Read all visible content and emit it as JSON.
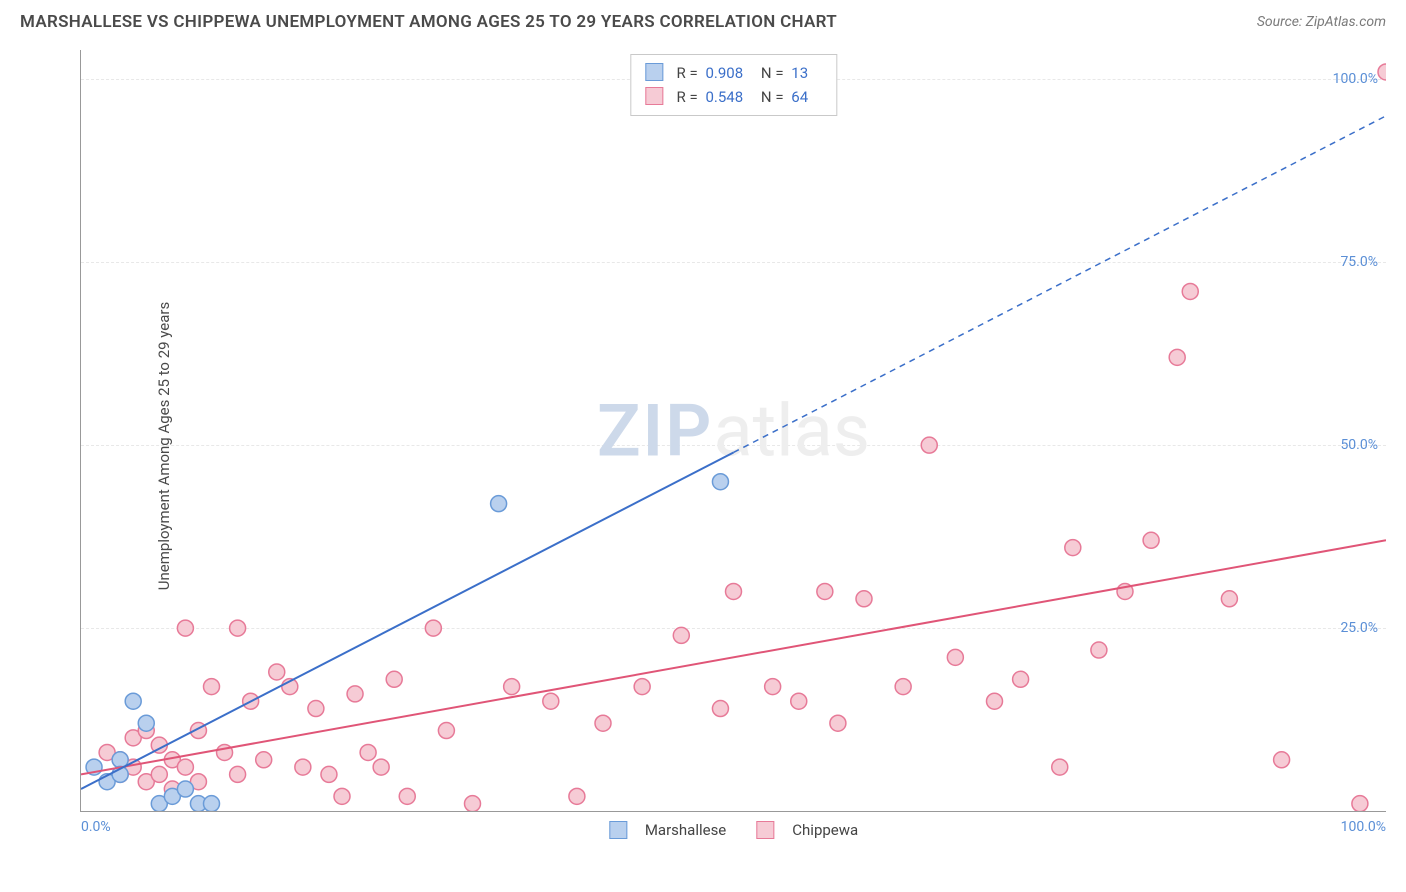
{
  "header": {
    "title": "MARSHALLESE VS CHIPPEWA UNEMPLOYMENT AMONG AGES 25 TO 29 YEARS CORRELATION CHART",
    "source": "Source: ZipAtlas.com"
  },
  "ylabel": "Unemployment Among Ages 25 to 29 years",
  "watermark": {
    "zip": "ZIP",
    "atlas": "atlas"
  },
  "chart": {
    "type": "scatter",
    "xlim": [
      0,
      100
    ],
    "ylim": [
      0,
      104
    ],
    "xticks": [
      {
        "v": 0,
        "label": "0.0%"
      },
      {
        "v": 100,
        "label": "100.0%"
      }
    ],
    "yticks": [
      {
        "v": 25,
        "label": "25.0%"
      },
      {
        "v": 50,
        "label": "50.0%"
      },
      {
        "v": 75,
        "label": "75.0%"
      },
      {
        "v": 100,
        "label": "100.0%"
      }
    ],
    "grid_color": "#e8e8e8",
    "axis_color": "#999999",
    "tick_color": "#5b8fd6",
    "marker_radius": 8,
    "marker_stroke_width": 1.5,
    "line_width": 2
  },
  "series": {
    "marshallese": {
      "label": "Marshallese",
      "color_fill": "#b9d0ee",
      "color_stroke": "#6a9bd8",
      "line_color": "#3b6fc9",
      "R": "0.908",
      "N": "13",
      "trend": {
        "solid_to": 50,
        "x1": 0,
        "y1": 3,
        "x2": 100,
        "y2": 95
      },
      "points": [
        [
          1,
          6
        ],
        [
          2,
          4
        ],
        [
          3,
          7
        ],
        [
          3,
          5
        ],
        [
          4,
          15
        ],
        [
          5,
          12
        ],
        [
          6,
          1
        ],
        [
          7,
          2
        ],
        [
          8,
          3
        ],
        [
          9,
          1
        ],
        [
          10,
          1
        ],
        [
          32,
          42
        ],
        [
          49,
          45
        ]
      ]
    },
    "chippewa": {
      "label": "Chippewa",
      "color_fill": "#f6cbd5",
      "color_stroke": "#e77a98",
      "line_color": "#e05577",
      "R": "0.548",
      "N": "64",
      "trend": {
        "x1": 0,
        "y1": 5,
        "x2": 100,
        "y2": 37
      },
      "points": [
        [
          2,
          8
        ],
        [
          3,
          7
        ],
        [
          3,
          5
        ],
        [
          4,
          10
        ],
        [
          4,
          6
        ],
        [
          5,
          11
        ],
        [
          5,
          4
        ],
        [
          6,
          9
        ],
        [
          6,
          5
        ],
        [
          7,
          7
        ],
        [
          7,
          3
        ],
        [
          8,
          25
        ],
        [
          8,
          6
        ],
        [
          9,
          4
        ],
        [
          9,
          11
        ],
        [
          10,
          17
        ],
        [
          11,
          8
        ],
        [
          12,
          5
        ],
        [
          12,
          25
        ],
        [
          13,
          15
        ],
        [
          14,
          7
        ],
        [
          15,
          19
        ],
        [
          16,
          17
        ],
        [
          17,
          6
        ],
        [
          18,
          14
        ],
        [
          19,
          5
        ],
        [
          20,
          2
        ],
        [
          21,
          16
        ],
        [
          22,
          8
        ],
        [
          23,
          6
        ],
        [
          24,
          18
        ],
        [
          25,
          2
        ],
        [
          27,
          25
        ],
        [
          28,
          11
        ],
        [
          30,
          1
        ],
        [
          33,
          17
        ],
        [
          36,
          15
        ],
        [
          38,
          2
        ],
        [
          40,
          12
        ],
        [
          43,
          17
        ],
        [
          46,
          24
        ],
        [
          49,
          14
        ],
        [
          50,
          30
        ],
        [
          53,
          17
        ],
        [
          55,
          15
        ],
        [
          57,
          30
        ],
        [
          58,
          12
        ],
        [
          60,
          29
        ],
        [
          63,
          17
        ],
        [
          65,
          50
        ],
        [
          67,
          21
        ],
        [
          70,
          15
        ],
        [
          72,
          18
        ],
        [
          75,
          6
        ],
        [
          76,
          36
        ],
        [
          78,
          22
        ],
        [
          80,
          30
        ],
        [
          82,
          37
        ],
        [
          84,
          62
        ],
        [
          85,
          71
        ],
        [
          88,
          29
        ],
        [
          92,
          7
        ],
        [
          98,
          1
        ],
        [
          100,
          101
        ]
      ]
    }
  },
  "stats_labels": {
    "R": "R =",
    "N": "N ="
  }
}
